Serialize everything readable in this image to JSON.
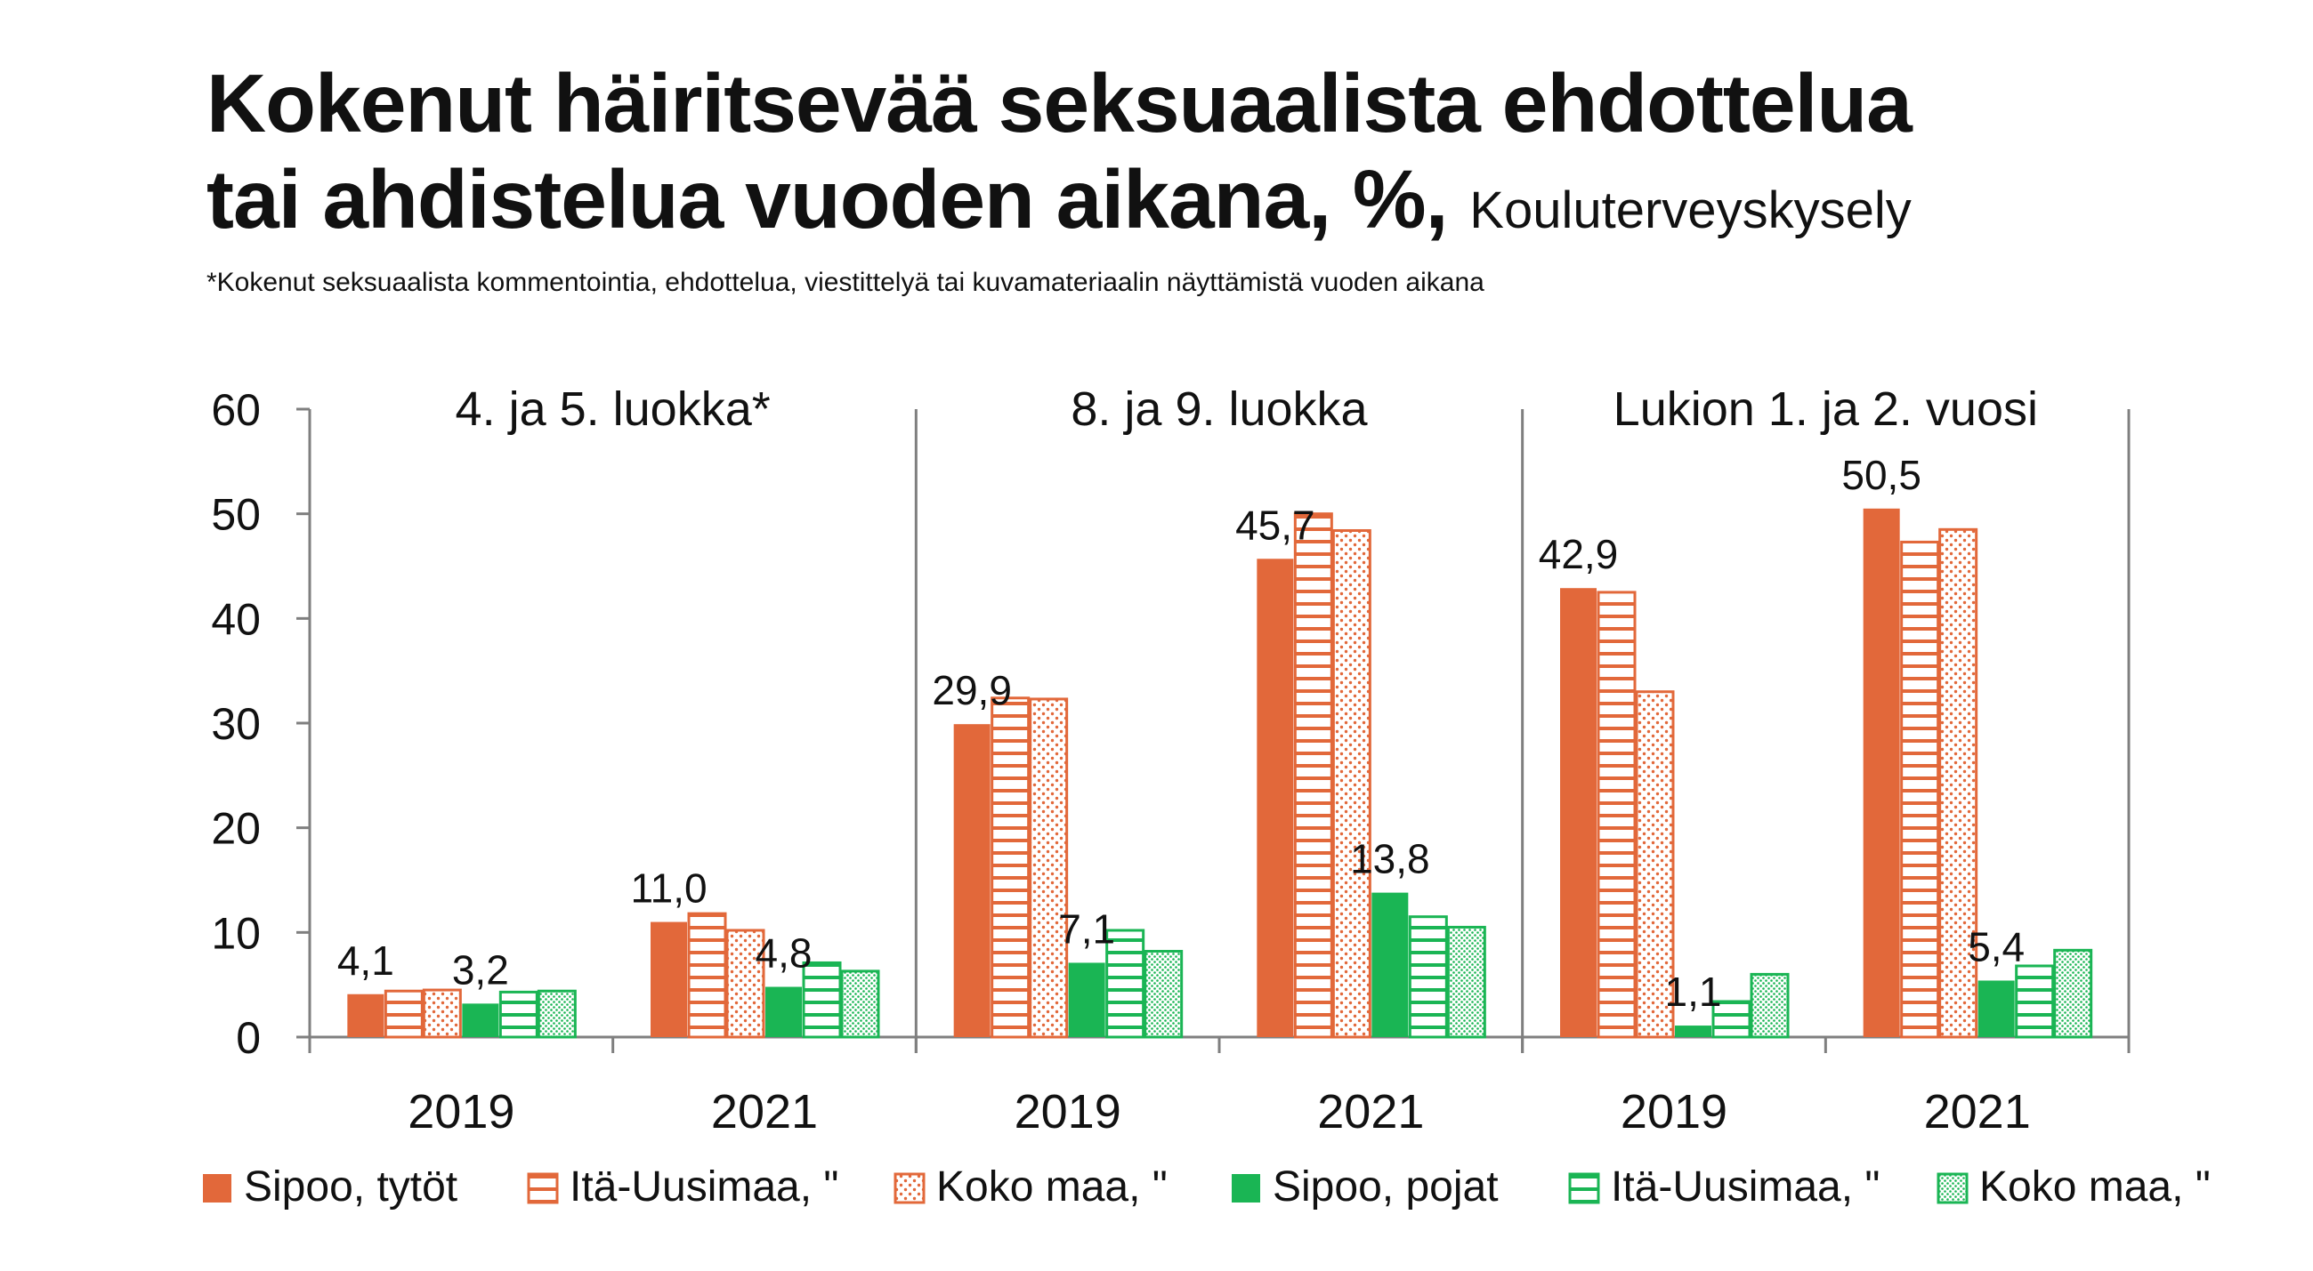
{
  "chart_data": {
    "type": "bar",
    "title": "Kokenut häiritsevää seksuaalista ehdottelua",
    "title_line2": "tai ahdistelua vuoden aikana, %,",
    "source": "Kouluterveyskysely",
    "subtitle": "*Kokenut seksuaalista kommentointia, ehdottelua, viestittelyä tai kuvamateriaalin näyttämistä vuoden aikana",
    "ylim": [
      0,
      60
    ],
    "yticks": [
      "0",
      "10",
      "20",
      "30",
      "40",
      "50",
      "60"
    ],
    "grid": false,
    "legend_position": "bottom",
    "colors": {
      "orange": "#e2683a",
      "green": "#1ab554"
    },
    "categories": [
      "2019",
      "2021",
      "2019",
      "2021",
      "2019",
      "2021"
    ],
    "groups": [
      {
        "label": "4. ja 5. luokka*",
        "categories": [
          "2019",
          "2021"
        ]
      },
      {
        "label": "8. ja 9. luokka",
        "categories": [
          "2019",
          "2021"
        ]
      },
      {
        "label": "Lukion 1. ja 2. vuosi",
        "categories": [
          "2019",
          "2021"
        ]
      }
    ],
    "series": [
      {
        "name": "Sipoo, tytöt",
        "color": "#e2683a",
        "pattern": "solid",
        "values": [
          4.1,
          11.0,
          29.9,
          45.7,
          42.9,
          50.5
        ],
        "labels": [
          "4,1",
          "11,0",
          "29,9",
          "45,7",
          "42,9",
          "50,5"
        ]
      },
      {
        "name": "Itä-Uusimaa, \"",
        "color": "#e2683a",
        "pattern": "horizontal-lines",
        "values": [
          4.4,
          11.8,
          32.4,
          50.0,
          42.5,
          47.3
        ]
      },
      {
        "name": "Koko maa, \"",
        "color": "#e2683a",
        "pattern": "dots",
        "values": [
          4.5,
          10.2,
          32.3,
          48.4,
          33.0,
          48.5
        ]
      },
      {
        "name": "Sipoo, pojat",
        "color": "#1ab554",
        "pattern": "solid",
        "values": [
          3.2,
          4.8,
          7.1,
          13.8,
          1.1,
          5.4
        ],
        "labels": [
          "3,2",
          "4,8",
          "7,1",
          "13,8",
          "1,1",
          "5,4"
        ]
      },
      {
        "name": "Itä-Uusimaa, \"",
        "color": "#1ab554",
        "pattern": "horizontal-lines",
        "values": [
          4.3,
          7.1,
          10.2,
          11.5,
          3.4,
          6.8
        ]
      },
      {
        "name": "Koko maa, \"",
        "color": "#1ab554",
        "pattern": "dots",
        "values": [
          4.4,
          6.3,
          8.2,
          10.5,
          6.0,
          8.3
        ]
      }
    ]
  }
}
